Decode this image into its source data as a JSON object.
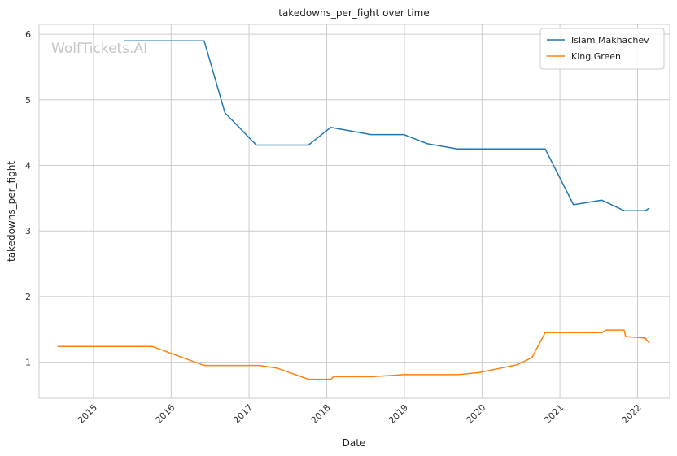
{
  "chart_data": {
    "type": "line",
    "title": "takedowns_per_fight over time",
    "xlabel": "Date",
    "ylabel": "takedowns_per_fight",
    "watermark": "WolfTickets.AI",
    "xlim": [
      "2014-04-20",
      "2022-06-01"
    ],
    "ylim": [
      0.45,
      6.15
    ],
    "x_ticks": [
      {
        "date": "2015-01-01",
        "label": "2015"
      },
      {
        "date": "2016-01-01",
        "label": "2016"
      },
      {
        "date": "2017-01-01",
        "label": "2017"
      },
      {
        "date": "2018-01-01",
        "label": "2018"
      },
      {
        "date": "2019-01-01",
        "label": "2019"
      },
      {
        "date": "2020-01-01",
        "label": "2020"
      },
      {
        "date": "2021-01-01",
        "label": "2021"
      },
      {
        "date": "2022-01-01",
        "label": "2022"
      }
    ],
    "y_ticks": [
      1,
      2,
      3,
      4,
      5,
      6
    ],
    "grid": true,
    "legend_position": "top-right",
    "series": [
      {
        "name": "Islam Makhachev",
        "color": "#1f77b4",
        "points": [
          [
            "2015-05-23",
            5.9
          ],
          [
            "2016-06-04",
            5.9
          ],
          [
            "2016-09-10",
            4.8
          ],
          [
            "2017-02-04",
            4.31
          ],
          [
            "2017-10-07",
            4.31
          ],
          [
            "2018-01-20",
            4.58
          ],
          [
            "2018-07-28",
            4.47
          ],
          [
            "2018-12-29",
            4.47
          ],
          [
            "2019-04-20",
            4.33
          ],
          [
            "2019-09-07",
            4.25
          ],
          [
            "2020-10-24",
            4.25
          ],
          [
            "2021-03-06",
            3.4
          ],
          [
            "2021-07-17",
            3.47
          ],
          [
            "2021-10-30",
            3.31
          ],
          [
            "2022-02-05",
            3.31
          ],
          [
            "2022-02-26",
            3.35
          ]
        ]
      },
      {
        "name": "King Green",
        "color": "#ff7f0e",
        "points": [
          [
            "2014-07-16",
            1.24
          ],
          [
            "2015-10-03",
            1.24
          ],
          [
            "2016-06-04",
            0.95
          ],
          [
            "2017-02-19",
            0.95
          ],
          [
            "2017-05-13",
            0.91
          ],
          [
            "2017-10-07",
            0.74
          ],
          [
            "2018-01-20",
            0.74
          ],
          [
            "2018-02-03",
            0.78
          ],
          [
            "2018-08-04",
            0.78
          ],
          [
            "2018-12-29",
            0.81
          ],
          [
            "2019-09-07",
            0.81
          ],
          [
            "2019-12-14",
            0.84
          ],
          [
            "2020-06-13",
            0.96
          ],
          [
            "2020-08-22",
            1.07
          ],
          [
            "2020-10-24",
            1.45
          ],
          [
            "2021-07-17",
            1.45
          ],
          [
            "2021-08-07",
            1.49
          ],
          [
            "2021-10-30",
            1.49
          ],
          [
            "2021-11-06",
            1.39
          ],
          [
            "2022-02-05",
            1.37
          ],
          [
            "2022-02-26",
            1.29
          ]
        ]
      }
    ]
  }
}
